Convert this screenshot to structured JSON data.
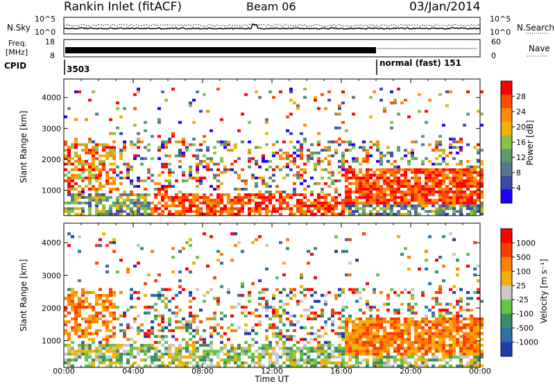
{
  "header": {
    "station": "Rankin Inlet (fitACF)",
    "beam": "Beam 06",
    "date": "03/Jan/2014"
  },
  "noise_panel": {
    "left_label": "N.Sky",
    "right_label": "N.Search",
    "ticks_left": [
      "10^5",
      "10^0"
    ],
    "ticks_right": [
      "10^5",
      "10^0"
    ]
  },
  "freq_panel": {
    "left_label_1": "Freq.",
    "left_label_2": "[MHz]",
    "ticks_left": [
      "18",
      "8"
    ],
    "ticks_right": [
      "60",
      "0"
    ],
    "right_label": "Nave"
  },
  "cpid": {
    "label": "CPID",
    "segments": [
      {
        "start_hour": 0,
        "text": "3503"
      },
      {
        "start_hour": 18,
        "text": "normal (fast) 151"
      }
    ]
  },
  "colors": {
    "power_scale": [
      "#1f00ff",
      "#3a4aa8",
      "#55778f",
      "#5a9b70",
      "#84c44a",
      "#f2b100",
      "#ff8a00",
      "#ff4a00",
      "#ff0000"
    ],
    "velocity_scale": [
      "#1f3cb5",
      "#2f6fa7",
      "#3d8b6a",
      "#63c640",
      "#c8c8c8",
      "#f2b100",
      "#ff7f00",
      "#ff3a00",
      "#ff0000"
    ]
  },
  "chart_data": [
    {
      "type": "heatmap",
      "title": "Power",
      "xlabel": "",
      "ylabel": "Slant Range [km]",
      "x_ticks": [
        "00:00",
        "04:00",
        "08:00",
        "12:00",
        "16:00",
        "20:00",
        "00:00"
      ],
      "x_range_hours": [
        0,
        24
      ],
      "y_ticks": [
        1000,
        2000,
        3000,
        4000
      ],
      "y_range_km": [
        180,
        4600
      ],
      "colorbar": {
        "label": "Power [dB]",
        "ticks": [
          "28",
          "24",
          "20",
          "16",
          "12",
          "8",
          "4"
        ],
        "range": [
          0,
          30
        ]
      }
    },
    {
      "type": "heatmap",
      "title": "Velocity",
      "xlabel": "Time UT",
      "ylabel": "Slant Range [km]",
      "x_ticks": [
        "00:00",
        "04:00",
        "08:00",
        "12:00",
        "16:00",
        "20:00",
        "00:00"
      ],
      "x_range_hours": [
        0,
        24
      ],
      "y_ticks": [
        1000,
        2000,
        3000,
        4000
      ],
      "y_range_km": [
        180,
        4600
      ],
      "colorbar": {
        "label": "Velocity [m s⁻¹]",
        "ticks": [
          "1000",
          "500",
          "100",
          "25",
          "-25",
          "-100",
          "-500",
          "-1000"
        ],
        "range": [
          -1000,
          1000
        ]
      }
    }
  ]
}
